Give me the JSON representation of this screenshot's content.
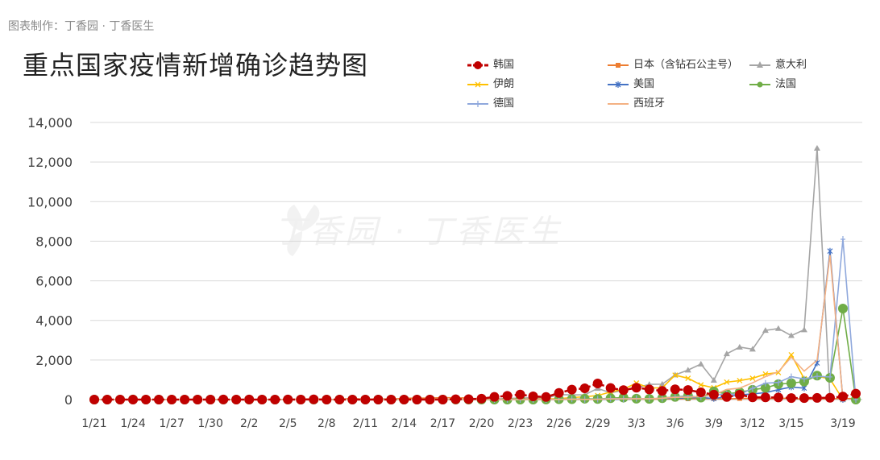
{
  "credit": "图表制作：丁香园 · 丁香医生",
  "watermark": "丁香园 · 丁香医生",
  "chart_data": {
    "type": "line",
    "title": "重点国家疫情新增确诊趋势图",
    "xlabel": "",
    "ylabel": "",
    "ylim": [
      0,
      14000
    ],
    "yticks": [
      "0",
      "2,000",
      "4,000",
      "6,000",
      "8,000",
      "10,000",
      "12,000",
      "14,000"
    ],
    "xtick_labels": [
      "1/21",
      "1/24",
      "1/27",
      "1/30",
      "2/2",
      "2/5",
      "2/8",
      "2/11",
      "2/14",
      "2/17",
      "2/20",
      "2/23",
      "2/26",
      "2/29",
      "3/3",
      "3/6",
      "3/9",
      "3/12",
      "3/15",
      "3/19"
    ],
    "x": [
      "1/21",
      "1/22",
      "1/23",
      "1/24",
      "1/25",
      "1/26",
      "1/27",
      "1/28",
      "1/29",
      "1/30",
      "1/31",
      "2/1",
      "2/2",
      "2/3",
      "2/4",
      "2/5",
      "2/6",
      "2/7",
      "2/8",
      "2/9",
      "2/10",
      "2/11",
      "2/12",
      "2/13",
      "2/14",
      "2/15",
      "2/16",
      "2/17",
      "2/18",
      "2/19",
      "2/20",
      "2/21",
      "2/22",
      "2/23",
      "2/24",
      "2/25",
      "2/26",
      "2/27",
      "2/28",
      "2/29",
      "3/1",
      "3/2",
      "3/3",
      "3/4",
      "3/5",
      "3/6",
      "3/7",
      "3/8",
      "3/9",
      "3/10",
      "3/11",
      "3/12",
      "3/13",
      "3/14",
      "3/15",
      "3/16",
      "3/17",
      "3/18",
      "3/19",
      "3/20"
    ],
    "grid": true,
    "legend_position": "top",
    "series": [
      {
        "name": "韩国",
        "color": "#c00000",
        "marker": "dot",
        "values": [
          1,
          0,
          0,
          0,
          1,
          0,
          1,
          0,
          0,
          0,
          4,
          1,
          3,
          0,
          1,
          4,
          1,
          8,
          1,
          0,
          0,
          1,
          0,
          0,
          0,
          0,
          1,
          2,
          16,
          20,
          48,
          135,
          190,
          256,
          161,
          130,
          334,
          505,
          571,
          813,
          586,
          476,
          600,
          516,
          438,
          518,
          483,
          367,
          248,
          131,
          242,
          114,
          110,
          107,
          76,
          74,
          84,
          93,
          152,
          300
        ]
      },
      {
        "name": "日本（含钻石公主号）",
        "color": "#ed7d31",
        "marker": "square",
        "values": [
          0,
          0,
          0,
          0,
          0,
          0,
          0,
          1,
          1,
          3,
          3,
          2,
          0,
          0,
          2,
          12,
          20,
          41,
          3,
          6,
          66,
          5,
          41,
          19,
          70,
          72,
          72,
          100,
          90,
          77,
          20,
          27,
          41,
          20,
          17,
          20,
          14,
          21,
          25,
          10,
          15,
          14,
          20,
          16,
          25,
          34,
          45,
          57,
          53,
          33,
          57,
          58,
          55,
          62,
          64,
          15,
          44,
          36,
          61,
          50
        ]
      },
      {
        "name": "意大利",
        "color": "#a5a5a5",
        "marker": "triangle",
        "values": [
          0,
          0,
          0,
          0,
          0,
          0,
          0,
          0,
          0,
          0,
          2,
          0,
          0,
          0,
          0,
          0,
          0,
          1,
          0,
          0,
          0,
          0,
          0,
          0,
          0,
          0,
          0,
          0,
          0,
          0,
          3,
          17,
          60,
          76,
          93,
          78,
          250,
          238,
          240,
          566,
          342,
          466,
          587,
          769,
          778,
          1247,
          1492,
          1797,
          977,
          2313,
          2651,
          2547,
          3497,
          3590,
          3233,
          3526,
          12700,
          0,
          0,
          0
        ]
      },
      {
        "name": "伊朗",
        "color": "#ffc000",
        "marker": "x",
        "values": [
          0,
          0,
          0,
          0,
          0,
          0,
          0,
          0,
          0,
          0,
          0,
          0,
          0,
          0,
          0,
          0,
          0,
          0,
          0,
          0,
          0,
          0,
          0,
          0,
          0,
          0,
          0,
          0,
          2,
          3,
          13,
          10,
          15,
          18,
          12,
          34,
          44,
          106,
          143,
          205,
          385,
          523,
          835,
          586,
          591,
          1234,
          1076,
          743,
          595,
          881,
          958,
          1075,
          1289,
          1365,
          2262,
          1053,
          1178,
          1046,
          0,
          0
        ]
      },
      {
        "name": "美国",
        "color": "#4472c4",
        "marker": "star",
        "values": [
          1,
          0,
          0,
          0,
          0,
          0,
          3,
          0,
          0,
          1,
          0,
          0,
          0,
          0,
          0,
          0,
          0,
          0,
          0,
          0,
          0,
          0,
          0,
          0,
          0,
          1,
          0,
          0,
          0,
          0,
          0,
          0,
          0,
          0,
          0,
          0,
          0,
          0,
          0,
          9,
          5,
          16,
          20,
          31,
          70,
          57,
          88,
          104,
          52,
          148,
          238,
          287,
          351,
          500,
          635,
          580,
          1850,
          7500,
          0,
          0
        ]
      },
      {
        "name": "法国",
        "color": "#70ad47",
        "marker": "dot",
        "values": [
          0,
          0,
          0,
          3,
          0,
          0,
          0,
          1,
          1,
          0,
          0,
          0,
          0,
          0,
          0,
          0,
          0,
          0,
          0,
          0,
          0,
          0,
          0,
          0,
          0,
          0,
          0,
          0,
          0,
          0,
          0,
          0,
          0,
          0,
          2,
          4,
          20,
          19,
          43,
          30,
          70,
          100,
          48,
          34,
          73,
          138,
          190,
          103,
          410,
          286,
          372,
          495,
          591,
          780,
          829,
          911,
          1210,
          1097,
          4600,
          0
        ]
      },
      {
        "name": "德国",
        "color": "#8fa8dc",
        "marker": "plus",
        "values": [
          0,
          0,
          0,
          0,
          0,
          0,
          0,
          1,
          3,
          0,
          1,
          3,
          2,
          2,
          0,
          0,
          2,
          0,
          0,
          0,
          2,
          0,
          0,
          0,
          0,
          0,
          0,
          0,
          0,
          0,
          0,
          0,
          0,
          0,
          0,
          1,
          10,
          30,
          6,
          22,
          51,
          42,
          54,
          44,
          57,
          136,
          157,
          132,
          218,
          286,
          252,
          567,
          826,
          867,
          1156,
          1040,
          1174,
          1144,
          8100,
          0
        ]
      },
      {
        "name": "西班牙",
        "color": "#f4b183",
        "marker": "line",
        "values": [
          0,
          0,
          0,
          0,
          0,
          0,
          0,
          0,
          0,
          0,
          1,
          0,
          0,
          0,
          0,
          0,
          0,
          0,
          1,
          0,
          0,
          0,
          0,
          0,
          0,
          0,
          0,
          0,
          0,
          0,
          0,
          0,
          0,
          0,
          2,
          5,
          7,
          16,
          8,
          13,
          32,
          36,
          45,
          37,
          67,
          116,
          117,
          158,
          237,
          510,
          578,
          847,
          1159,
          1407,
          2144,
          1438,
          1987,
          7300,
          0,
          0
        ]
      }
    ]
  }
}
